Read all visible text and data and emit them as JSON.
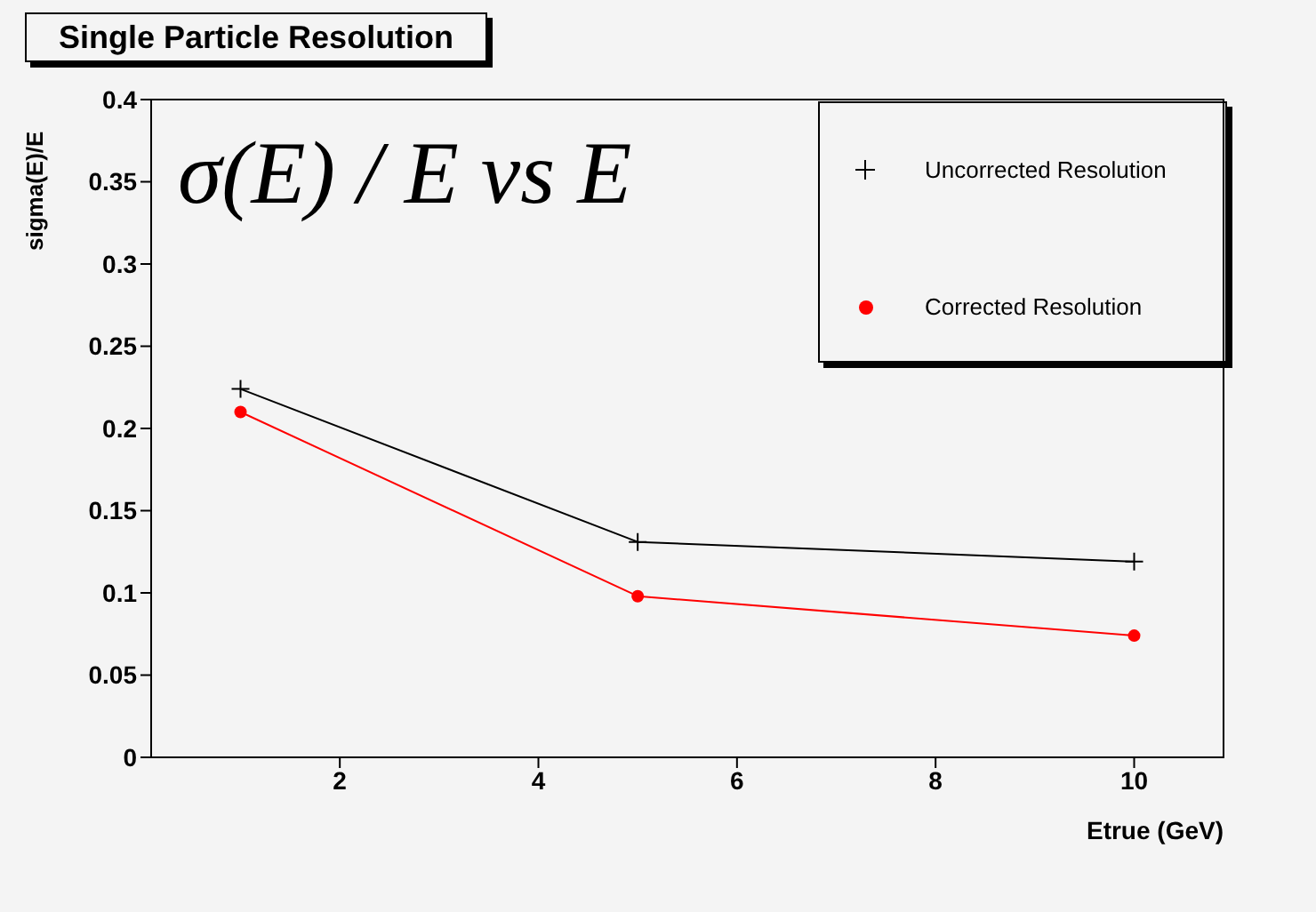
{
  "chart_data": {
    "type": "line",
    "title": "Single Particle Resolution",
    "xlabel": "Etrue (GeV)",
    "ylabel": "sigma(E)/E",
    "annotations": [
      "σ(E) / E vs E"
    ],
    "x": [
      1,
      5,
      10
    ],
    "series": [
      {
        "name": "Uncorrected Resolution",
        "color": "#000000",
        "marker": "cross",
        "values": [
          0.224,
          0.131,
          0.119
        ]
      },
      {
        "name": "Corrected Resolution",
        "color": "#ff0000",
        "marker": "circle",
        "values": [
          0.21,
          0.098,
          0.074
        ]
      }
    ],
    "xlim": [
      0.1,
      10.9
    ],
    "xticks": [
      2,
      4,
      6,
      8,
      10
    ],
    "ylim": [
      0,
      0.4
    ],
    "yticks": [
      0,
      0.05,
      0.1,
      0.15,
      0.2,
      0.25,
      0.3,
      0.35,
      0.4
    ],
    "grid": false,
    "legend": "top right"
  }
}
